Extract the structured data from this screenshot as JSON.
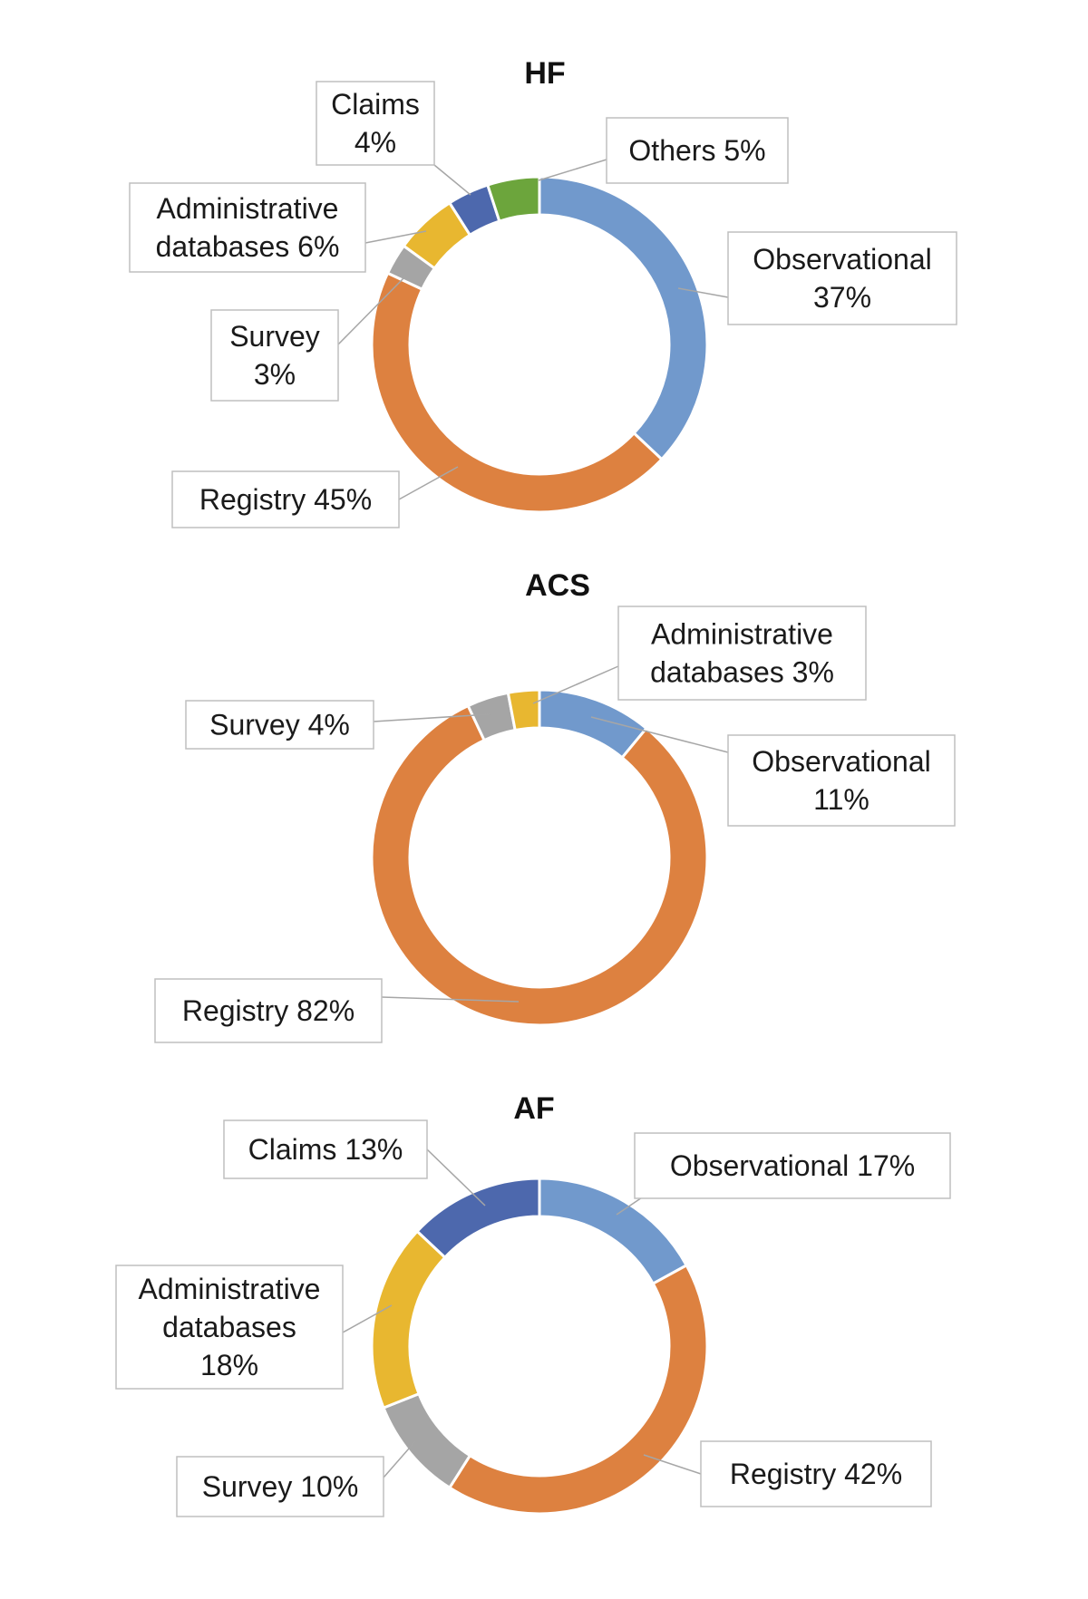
{
  "chart_data": [
    {
      "type": "pie",
      "title": "HF",
      "slices": [
        {
          "name": "Observational",
          "value": 37,
          "label_lines": [
            "Observational",
            "37%"
          ],
          "color": "#7199cc"
        },
        {
          "name": "Registry",
          "value": 45,
          "label_lines": [
            "Registry 45%"
          ],
          "color": "#dd8140"
        },
        {
          "name": "Survey",
          "value": 3,
          "label_lines": [
            "Survey",
            "3%"
          ],
          "color": "#a5a5a5"
        },
        {
          "name": "Administrative databases",
          "value": 6,
          "label_lines": [
            "Administrative",
            "databases 6%"
          ],
          "color": "#e8b730"
        },
        {
          "name": "Claims",
          "value": 4,
          "label_lines": [
            "Claims",
            "4%"
          ],
          "color": "#4d68ad"
        },
        {
          "name": "Others",
          "value": 5,
          "label_lines": [
            "Others 5%"
          ],
          "color": "#6ca53c"
        }
      ]
    },
    {
      "type": "pie",
      "title": "ACS",
      "slices": [
        {
          "name": "Observational",
          "value": 11,
          "label_lines": [
            "Observational",
            "11%"
          ],
          "color": "#7199cc"
        },
        {
          "name": "Registry",
          "value": 82,
          "label_lines": [
            "Registry 82%"
          ],
          "color": "#dd8140"
        },
        {
          "name": "Survey",
          "value": 4,
          "label_lines": [
            "Survey 4%"
          ],
          "color": "#a5a5a5"
        },
        {
          "name": "Administrative databases",
          "value": 3,
          "label_lines": [
            "Administrative",
            "databases 3%"
          ],
          "color": "#e8b730"
        }
      ]
    },
    {
      "type": "pie",
      "title": "AF",
      "slices": [
        {
          "name": "Observational",
          "value": 17,
          "label_lines": [
            "Observational 17%"
          ],
          "color": "#7199cc"
        },
        {
          "name": "Registry",
          "value": 42,
          "label_lines": [
            "Registry 42%"
          ],
          "color": "#dd8140"
        },
        {
          "name": "Survey",
          "value": 10,
          "label_lines": [
            "Survey 10%"
          ],
          "color": "#a5a5a5"
        },
        {
          "name": "Administrative databases",
          "value": 18,
          "label_lines": [
            "Administrative",
            "databases",
            "18%"
          ],
          "color": "#e8b730"
        },
        {
          "name": "Claims",
          "value": 13,
          "label_lines": [
            "Claims 13%"
          ],
          "color": "#4d68ad"
        }
      ]
    }
  ]
}
